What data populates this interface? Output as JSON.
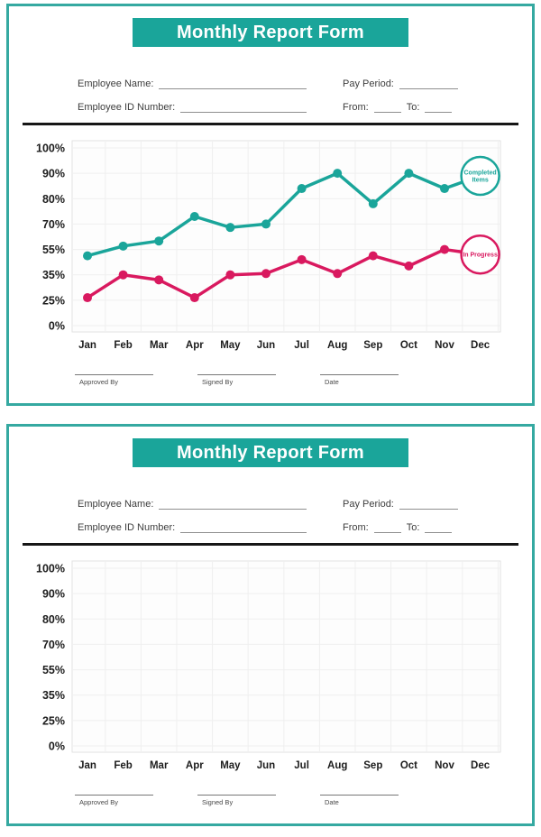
{
  "theme": {
    "teal": "#1aa59a",
    "pink": "#d9195f",
    "panel_border": "#35a9a1",
    "divider": "#161616",
    "grid": "#efefef",
    "plot_border": "#e2e2e2",
    "axis_text": "#1c1c1c"
  },
  "form": {
    "title": "Monthly Report Form",
    "fields": {
      "employee_name_label": "Employee Name:",
      "pay_period_label": "Pay Period:",
      "employee_id_label": "Employee ID Number:",
      "from_label": "From:",
      "to_label": "To:"
    },
    "signatures": [
      {
        "label": "Approved By"
      },
      {
        "label": "Signed By"
      },
      {
        "label": "Date"
      }
    ]
  },
  "chart_data": [
    {
      "type": "line",
      "title": "",
      "categories": [
        "Jan",
        "Feb",
        "Mar",
        "Apr",
        "May",
        "Jun",
        "Jul",
        "Aug",
        "Sep",
        "Oct",
        "Nov",
        "Dec"
      ],
      "y_tick_labels": [
        "100%",
        "90%",
        "80%",
        "70%",
        "55%",
        "35%",
        "25%",
        "0%"
      ],
      "y_tick_values": [
        100,
        90,
        80,
        70,
        55,
        35,
        25,
        0
      ],
      "ylim": [
        0,
        100
      ],
      "grid": true,
      "legend_position": "bubbles-at-dec",
      "series": [
        {
          "name": "Completed Items",
          "legend_lines": [
            "Completed",
            "Items"
          ],
          "color": "#1aa59a",
          "values": [
            50,
            57,
            60,
            73,
            68,
            70,
            84,
            90,
            78,
            90,
            84,
            89
          ],
          "dec_is_legend_bubble": true
        },
        {
          "name": "In Progress",
          "legend_lines": [
            "In Progress"
          ],
          "color": "#d9195f",
          "values": [
            26,
            35,
            33,
            26,
            35,
            36,
            47,
            36,
            50,
            42,
            55,
            51
          ],
          "dec_is_legend_bubble": true
        }
      ]
    },
    {
      "type": "line",
      "title": "",
      "categories": [
        "Jan",
        "Feb",
        "Mar",
        "Apr",
        "May",
        "Jun",
        "Jul",
        "Aug",
        "Sep",
        "Oct",
        "Nov",
        "Dec"
      ],
      "y_tick_labels": [
        "100%",
        "90%",
        "80%",
        "70%",
        "55%",
        "35%",
        "25%",
        "0%"
      ],
      "y_tick_values": [
        100,
        90,
        80,
        70,
        55,
        35,
        25,
        0
      ],
      "ylim": [
        0,
        100
      ],
      "grid": true,
      "legend_position": "none",
      "series": []
    }
  ]
}
